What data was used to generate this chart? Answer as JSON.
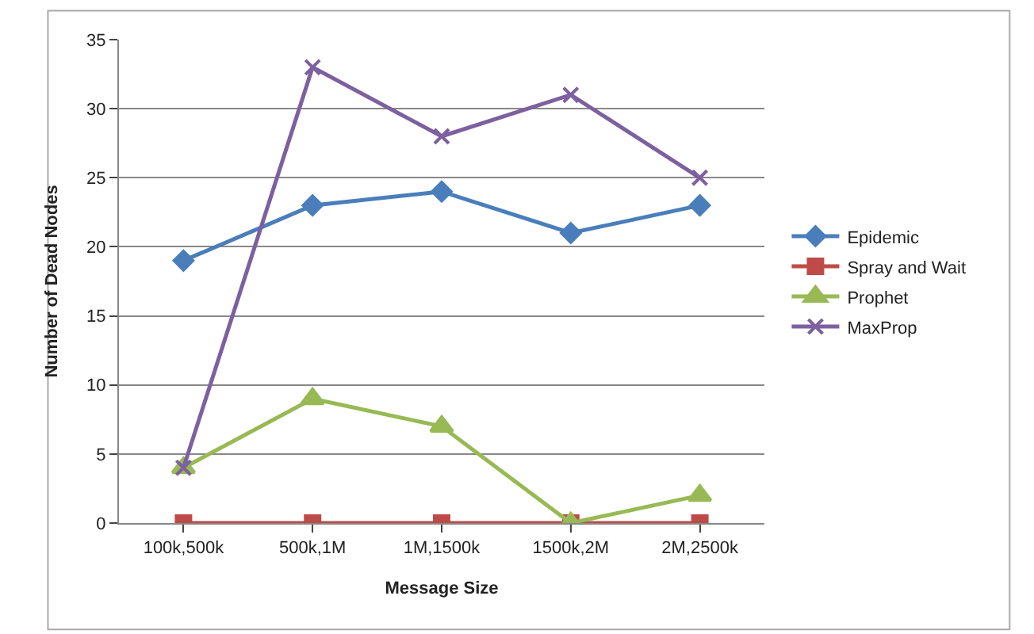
{
  "chart_data": {
    "type": "line",
    "xlabel": "Message Size",
    "ylabel": "Number of Dead Nodes",
    "categories": [
      "100k,500k",
      "500k,1M",
      "1M,1500k",
      "1500k,2M",
      "2M,2500k"
    ],
    "series": [
      {
        "name": "Epidemic",
        "color": "#4a7ebb",
        "marker": "diamond",
        "values": [
          19,
          23,
          24,
          21,
          23
        ]
      },
      {
        "name": "Spray and Wait",
        "color": "#be4b48",
        "marker": "square",
        "values": [
          0,
          0,
          0,
          0,
          0
        ]
      },
      {
        "name": "Prophet",
        "color": "#98b954",
        "marker": "triangle",
        "values": [
          4,
          9,
          7,
          0,
          2
        ]
      },
      {
        "name": "MaxProp",
        "color": "#7d60a0",
        "marker": "cross",
        "values": [
          4,
          33,
          28,
          31,
          25
        ]
      }
    ],
    "ylim": [
      0,
      35
    ],
    "yticks": [
      0,
      5,
      10,
      15,
      20,
      25,
      30,
      35
    ],
    "grid": "y",
    "legend": "right"
  }
}
